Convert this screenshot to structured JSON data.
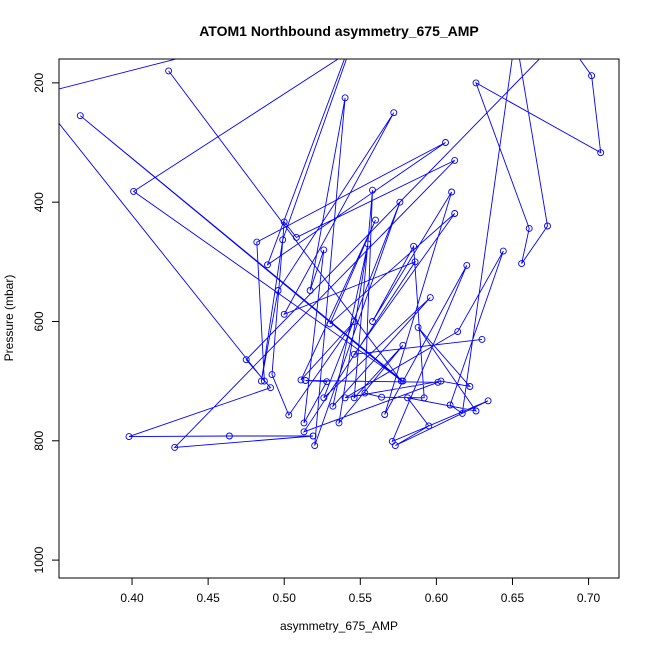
{
  "chart_data": {
    "type": "line",
    "title": "ATOM1 Northbound asymmetry_675_AMP",
    "xlabel": "asymmetry_675_AMP",
    "ylabel": "Pressure (mbar)",
    "xlim": [
      0.352,
      0.72
    ],
    "ylim": [
      1030,
      160
    ],
    "y_reversed": true,
    "x_ticks": [
      0.4,
      0.45,
      0.5,
      0.55,
      0.6,
      0.65,
      0.7
    ],
    "x_tick_labels": [
      "0.40",
      "0.45",
      "0.50",
      "0.55",
      "0.60",
      "0.65",
      "0.70"
    ],
    "y_ticks": [
      200,
      400,
      600,
      800,
      1000
    ],
    "y_tick_labels": [
      "200",
      "400",
      "600",
      "800",
      "1000"
    ],
    "grid": false,
    "legend": "none",
    "color": "#0000ff",
    "marker": "open-circle",
    "series": [
      {
        "points": [
          [
            0.424,
            180
          ],
          [
            0.577,
            700
          ],
          [
            0.366,
            255
          ],
          [
            0.578,
            700
          ],
          [
            0.401,
            382
          ],
          [
            0.605,
            45
          ],
          [
            0.337,
            220
          ],
          [
            0.487,
            700
          ],
          [
            0.482,
            467
          ],
          [
            0.606,
            300
          ],
          [
            0.489,
            505
          ],
          [
            0.563,
            0
          ],
          [
            0.499,
            463
          ],
          [
            0.485,
            700
          ],
          [
            0.496,
            548
          ],
          [
            0.572,
            250
          ],
          [
            0.5,
            588
          ],
          [
            0.586,
            500
          ],
          [
            0.513,
            785
          ],
          [
            0.601,
            702
          ],
          [
            0.514,
            699
          ],
          [
            0.528,
            701
          ],
          [
            0.513,
            770
          ],
          [
            0.526,
            480
          ],
          [
            0.517,
            548
          ],
          [
            0.54,
            225
          ],
          [
            0.52,
            808
          ],
          [
            0.576,
            400
          ],
          [
            0.526,
            728
          ],
          [
            0.596,
            560
          ],
          [
            0.532,
            742
          ],
          [
            0.555,
            470
          ],
          [
            0.536,
            770
          ],
          [
            0.578,
            640
          ],
          [
            0.546,
            728
          ],
          [
            0.558,
            380
          ],
          [
            0.553,
            720
          ],
          [
            0.564,
            727
          ],
          [
            0.592,
            728
          ],
          [
            0.585,
            474
          ],
          [
            0.558,
            600
          ],
          [
            0.61,
            383
          ],
          [
            0.566,
            756
          ],
          [
            0.62,
            506
          ],
          [
            0.571,
            801
          ],
          [
            0.634,
            733
          ],
          [
            0.573,
            808
          ],
          [
            0.595,
            775
          ],
          [
            0.581,
            728
          ],
          [
            0.626,
            750
          ],
          [
            0.588,
            610
          ],
          [
            0.622,
            709
          ],
          [
            0.603,
            700
          ],
          [
            0.54,
            728
          ],
          [
            0.614,
            617
          ],
          [
            0.644,
            482
          ],
          [
            0.609,
            740
          ],
          [
            0.617,
            754
          ],
          [
            0.652,
            120
          ],
          [
            0.673,
            440
          ],
          [
            0.656,
            503
          ],
          [
            0.661,
            444
          ],
          [
            0.626,
            200
          ],
          [
            0.708,
            317
          ],
          [
            0.702,
            188
          ],
          [
            0.683,
            120
          ],
          [
            0.475,
            664
          ],
          [
            0.491,
            711
          ],
          [
            0.398,
            793
          ],
          [
            0.464,
            792
          ],
          [
            0.519,
            792
          ],
          [
            0.428,
            811
          ],
          [
            0.612,
            330
          ],
          [
            0.508,
            459
          ],
          [
            0.5,
            433
          ],
          [
            0.492,
            689
          ],
          [
            0.503,
            757
          ],
          [
            0.546,
            600
          ],
          [
            0.511,
            698
          ],
          [
            0.56,
            430
          ],
          [
            0.53,
            604
          ],
          [
            0.612,
            419
          ],
          [
            0.546,
            655
          ],
          [
            0.63,
            630
          ]
        ]
      }
    ]
  }
}
